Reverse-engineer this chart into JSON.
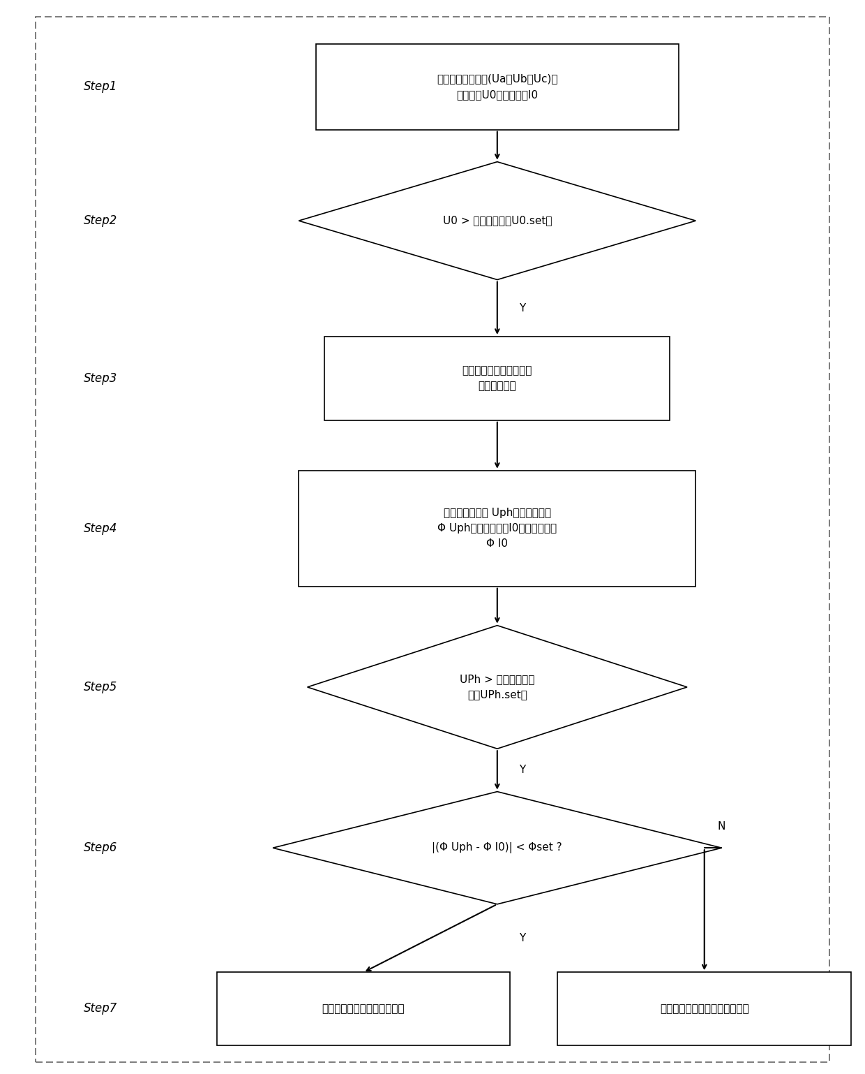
{
  "bg_color": "#ffffff",
  "border_color": "#000000",
  "box_color": "#ffffff",
  "line_color": "#000000",
  "text_color": "#000000",
  "fig_width": 12.4,
  "fig_height": 15.38,
  "dpi": 100,
  "s1_text_l1": "采集计算三相电压(Ua、Ub、Uc)、",
  "s1_text_l2": "零序电压U0、零序电流I0",
  "s2_text": "U0 > 零序电压门槛U0.set？",
  "s3_text_l1": "计算故障后的三相电压，",
  "s3_text_l2": "识别故障相。",
  "s4_text_l1": "计算故障相电压 Uph的幅值和相位",
  "s4_text_l2": "Φ Uph以及零序电流I0的幅值和相位",
  "s4_text_l3": "Φ I0",
  "s5_text_l1": "UPh > 高阻接地电压",
  "s5_text_l2": "门槛UPh.set？",
  "s6_text": "|(Φ Uph - Φ I0)| < Φset ?",
  "s7a_text": "本线路发生单相高阻接地故障",
  "s7b_text": "本线路未发生单相高阻接地故障",
  "label_Y": "Y",
  "label_N": "N",
  "step_labels": [
    "Step1",
    "Step2",
    "Step3",
    "Step4",
    "Step5",
    "Step6",
    "Step7"
  ]
}
